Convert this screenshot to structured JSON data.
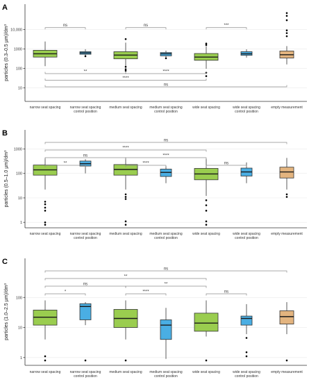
{
  "colors": {
    "narrow": "#9acd4f",
    "control": "#4aaee3",
    "empty": "#e3b47f",
    "bracket": "#8c8c8c",
    "grid": "#ebebeb"
  },
  "chart_data": [
    {
      "type": "box",
      "panel_label": "A",
      "ylabel": "particles (0.3–0.5 µm)/dm³",
      "yscale": "log",
      "ylim": [
        2,
        200000
      ],
      "yticks": [
        10,
        100,
        1000,
        10000
      ],
      "yticklabels": [
        "10",
        "100",
        "1000",
        "10,000"
      ],
      "categories": [
        [
          "narrow seat spacing"
        ],
        [
          "narrow seat spacing",
          "control position"
        ],
        [
          "medium seat spacing"
        ],
        [
          "medium seat spacing",
          "control position"
        ],
        [
          "wide seat spacing"
        ],
        [
          "wide seat spacing",
          "control position"
        ],
        [
          "empty measurement"
        ]
      ],
      "fill_keys": [
        "narrow",
        "control",
        "narrow",
        "control",
        "narrow",
        "control",
        "empty"
      ],
      "boxes": [
        {
          "min": 130,
          "q1": 380,
          "median": 560,
          "q3": 850,
          "max": 2400,
          "outliers": []
        },
        {
          "min": 410,
          "q1": 530,
          "median": 620,
          "q3": 720,
          "max": 960,
          "outliers": [
            420
          ]
        },
        {
          "min": 120,
          "q1": 310,
          "median": 480,
          "q3": 720,
          "max": 2100,
          "outliers": [
            3200,
            120,
            90,
            75
          ]
        },
        {
          "min": 350,
          "q1": 440,
          "median": 560,
          "q3": 650,
          "max": 820,
          "outliers": [
            330
          ]
        },
        {
          "min": 95,
          "q1": 260,
          "median": 380,
          "q3": 580,
          "max": 1400,
          "outliers": [
            1600,
            1900,
            60,
            40
          ]
        },
        {
          "min": 360,
          "q1": 470,
          "median": 560,
          "q3": 720,
          "max": 950,
          "outliers": []
        },
        {
          "min": 160,
          "q1": 340,
          "median": 500,
          "q3": 780,
          "max": 1400,
          "outliers": [
            70000,
            50000,
            30000,
            9000,
            6500,
            4500
          ]
        }
      ],
      "comparisons": [
        {
          "from": 0,
          "to": 1,
          "label": "ns",
          "level": 0
        },
        {
          "from": 2,
          "to": 3,
          "label": "ns",
          "level": 0
        },
        {
          "from": 4,
          "to": 5,
          "label": "***",
          "level": 0
        },
        {
          "from": 0,
          "to": 2,
          "label": "**",
          "level": -1
        },
        {
          "from": 2,
          "to": 4,
          "label": "****",
          "level": -1
        },
        {
          "from": 0,
          "to": 4,
          "label": "****",
          "level": -2
        },
        {
          "from": 0,
          "to": 6,
          "label": "ns",
          "level": -3
        }
      ]
    },
    {
      "type": "box",
      "panel_label": "B",
      "ylabel": "particles (0.5–1.0 µm)/dm³",
      "yscale": "log",
      "ylim": [
        0.6,
        6000
      ],
      "yticks": [
        1,
        10,
        100,
        1000
      ],
      "yticklabels": [
        "1",
        "10",
        "100",
        "1000"
      ],
      "categories": [
        [
          "narrow seat spacing"
        ],
        [
          "narrow seat spacing",
          "control position"
        ],
        [
          "medium seat spacing"
        ],
        [
          "medium seat spacing",
          "control position"
        ],
        [
          "wide seat spacing"
        ],
        [
          "wide seat spacing",
          "control position"
        ],
        [
          "empty measurement"
        ]
      ],
      "fill_keys": [
        "narrow",
        "control",
        "narrow",
        "control",
        "narrow",
        "control",
        "empty"
      ],
      "boxes": [
        {
          "min": 22,
          "q1": 85,
          "median": 140,
          "q3": 220,
          "max": 430,
          "outliers": [
            7,
            5.5,
            4,
            3,
            1,
            0.8
          ]
        },
        {
          "min": 100,
          "q1": 200,
          "median": 250,
          "q3": 320,
          "max": 380,
          "outliers": []
        },
        {
          "min": 22,
          "q1": 85,
          "median": 145,
          "q3": 230,
          "max": 440,
          "outliers": [
            14,
            11,
            9,
            1.1,
            0.8
          ]
        },
        {
          "min": 40,
          "q1": 75,
          "median": 110,
          "q3": 150,
          "max": 200,
          "outliers": []
        },
        {
          "min": 12,
          "q1": 55,
          "median": 95,
          "q3": 160,
          "max": 400,
          "outliers": [
            8,
            5,
            3,
            1.1,
            0.8
          ]
        },
        {
          "min": 40,
          "q1": 78,
          "median": 115,
          "q3": 165,
          "max": 280,
          "outliers": []
        },
        {
          "min": 22,
          "q1": 65,
          "median": 115,
          "q3": 180,
          "max": 430,
          "outliers": [
            14,
            11
          ]
        }
      ],
      "comparisons": [
        {
          "from": 0,
          "to": 1,
          "label": "**",
          "level": 0
        },
        {
          "from": 2,
          "to": 3,
          "label": "****",
          "level": 0
        },
        {
          "from": 4,
          "to": 5,
          "label": "ns",
          "level": 0
        },
        {
          "from": 0,
          "to": 2,
          "label": "ns",
          "level": 1
        },
        {
          "from": 2,
          "to": 4,
          "label": "****",
          "level": 1
        },
        {
          "from": 0,
          "to": 4,
          "label": "****",
          "level": 2
        },
        {
          "from": 0,
          "to": 6,
          "label": "ns",
          "level": 3
        }
      ]
    },
    {
      "type": "box",
      "panel_label": "C",
      "ylabel": "particles (1.0–2.5 µm)/dm³",
      "yscale": "log",
      "ylim": [
        0.55,
        2000
      ],
      "yticks": [
        1,
        10,
        100
      ],
      "yticklabels": [
        "1",
        "10",
        "100"
      ],
      "categories": [
        [
          "narrow seat spacing"
        ],
        [
          "narrow seat spacing",
          "control position"
        ],
        [
          "medium seat spacing"
        ],
        [
          "medium seat spacing",
          "control position"
        ],
        [
          "wide seat spacing"
        ],
        [
          "wide seat spacing",
          "control position"
        ],
        [
          "empty measurement"
        ]
      ],
      "fill_keys": [
        "narrow",
        "control",
        "narrow",
        "control",
        "narrow",
        "control",
        "empty"
      ],
      "boxes": [
        {
          "min": 4,
          "q1": 12,
          "median": 22,
          "q3": 38,
          "max": 80,
          "outliers": [
            1.1,
            0.8
          ]
        },
        {
          "min": 12,
          "q1": 18,
          "median": 50,
          "q3": 62,
          "max": 70,
          "outliers": [
            0.8
          ]
        },
        {
          "min": 4,
          "q1": 10,
          "median": 20,
          "q3": 40,
          "max": 80,
          "outliers": [
            0.8
          ]
        },
        {
          "min": 0.9,
          "q1": 4,
          "median": 12,
          "q3": 18,
          "max": 45,
          "outliers": []
        },
        {
          "min": 5,
          "q1": 7.5,
          "median": 14,
          "q3": 30,
          "max": 80,
          "outliers": [
            0.8
          ]
        },
        {
          "min": 6,
          "q1": 12,
          "median": 20,
          "q3": 24,
          "max": 60,
          "outliers": [
            4.5,
            1.5,
            1.1
          ]
        },
        {
          "min": 6,
          "q1": 13,
          "median": 23,
          "q3": 36,
          "max": 70,
          "outliers": [
            0.8
          ]
        }
      ],
      "comparisons": [
        {
          "from": 0,
          "to": 1,
          "label": "*",
          "level": 0
        },
        {
          "from": 2,
          "to": 3,
          "label": "****",
          "level": 0
        },
        {
          "from": 4,
          "to": 5,
          "label": "ns",
          "level": 0
        },
        {
          "from": 0,
          "to": 2,
          "label": "ns",
          "level": 1
        },
        {
          "from": 2,
          "to": 4,
          "label": "**",
          "level": 1
        },
        {
          "from": 0,
          "to": 4,
          "label": "**",
          "level": 2
        },
        {
          "from": 0,
          "to": 6,
          "label": "ns",
          "level": 3
        }
      ]
    }
  ]
}
